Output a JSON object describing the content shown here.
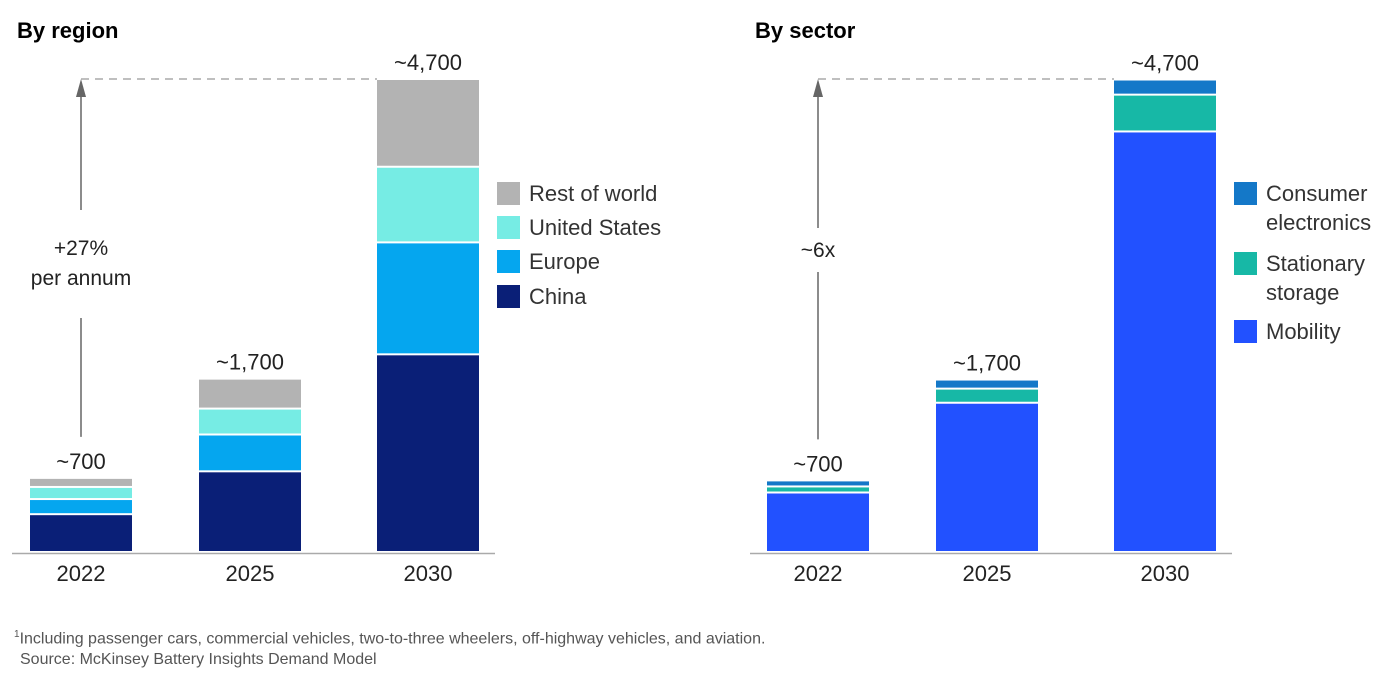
{
  "chart_data": [
    {
      "type": "bar",
      "stacked": true,
      "title": "By region",
      "categories": [
        "2022",
        "2025",
        "2030"
      ],
      "totals_labels": [
        "~700",
        "~1,700",
        "~4,700"
      ],
      "series": [
        {
          "name": "China",
          "color": "#0a1f77",
          "values": [
            375,
            800,
            1960
          ]
        },
        {
          "name": "Europe",
          "color": "#05a6ef",
          "values": [
            150,
            365,
            1110
          ]
        },
        {
          "name": "United States",
          "color": "#76ece4",
          "values": [
            120,
            257,
            750
          ]
        },
        {
          "name": "Rest of world",
          "color": "#b3b3b3",
          "values": [
            90,
            297,
            870
          ]
        }
      ],
      "legend_order": [
        "Rest of world",
        "United States",
        "Europe",
        "China"
      ],
      "legend_placement": "right",
      "annotation": [
        "+27%",
        "per annum"
      ],
      "ylim": [
        0,
        4700
      ],
      "grid": false
    },
    {
      "type": "bar",
      "stacked": true,
      "title": "By sector",
      "categories": [
        "2022",
        "2025",
        "2030"
      ],
      "totals_labels": [
        "~700",
        "~1,700",
        "~4,700"
      ],
      "series": [
        {
          "name": "Mobility",
          "color": "#2251ff",
          "values": [
            590,
            1480,
            4170
          ]
        },
        {
          "name": "Stationary storage",
          "color": "#17b8a6",
          "values": [
            60,
            140,
            365
          ]
        },
        {
          "name": "Consumer electronics",
          "color": "#1478c8",
          "values": [
            60,
            90,
            150
          ]
        }
      ],
      "legend_order": [
        [
          "Consumer",
          "electronics"
        ],
        [
          "Stationary",
          "storage"
        ],
        [
          "Mobility"
        ]
      ],
      "legend_placement": "right",
      "annotation": [
        "~6x"
      ],
      "ylim": [
        0,
        4700
      ],
      "grid": false
    }
  ],
  "footnote": {
    "line1": "Including passenger cars, commercial vehicles, two-to-three wheelers, off-highway vehicles, and aviation.",
    "marker": "1",
    "source": "Source: McKinsey Battery Insights Demand Model"
  }
}
